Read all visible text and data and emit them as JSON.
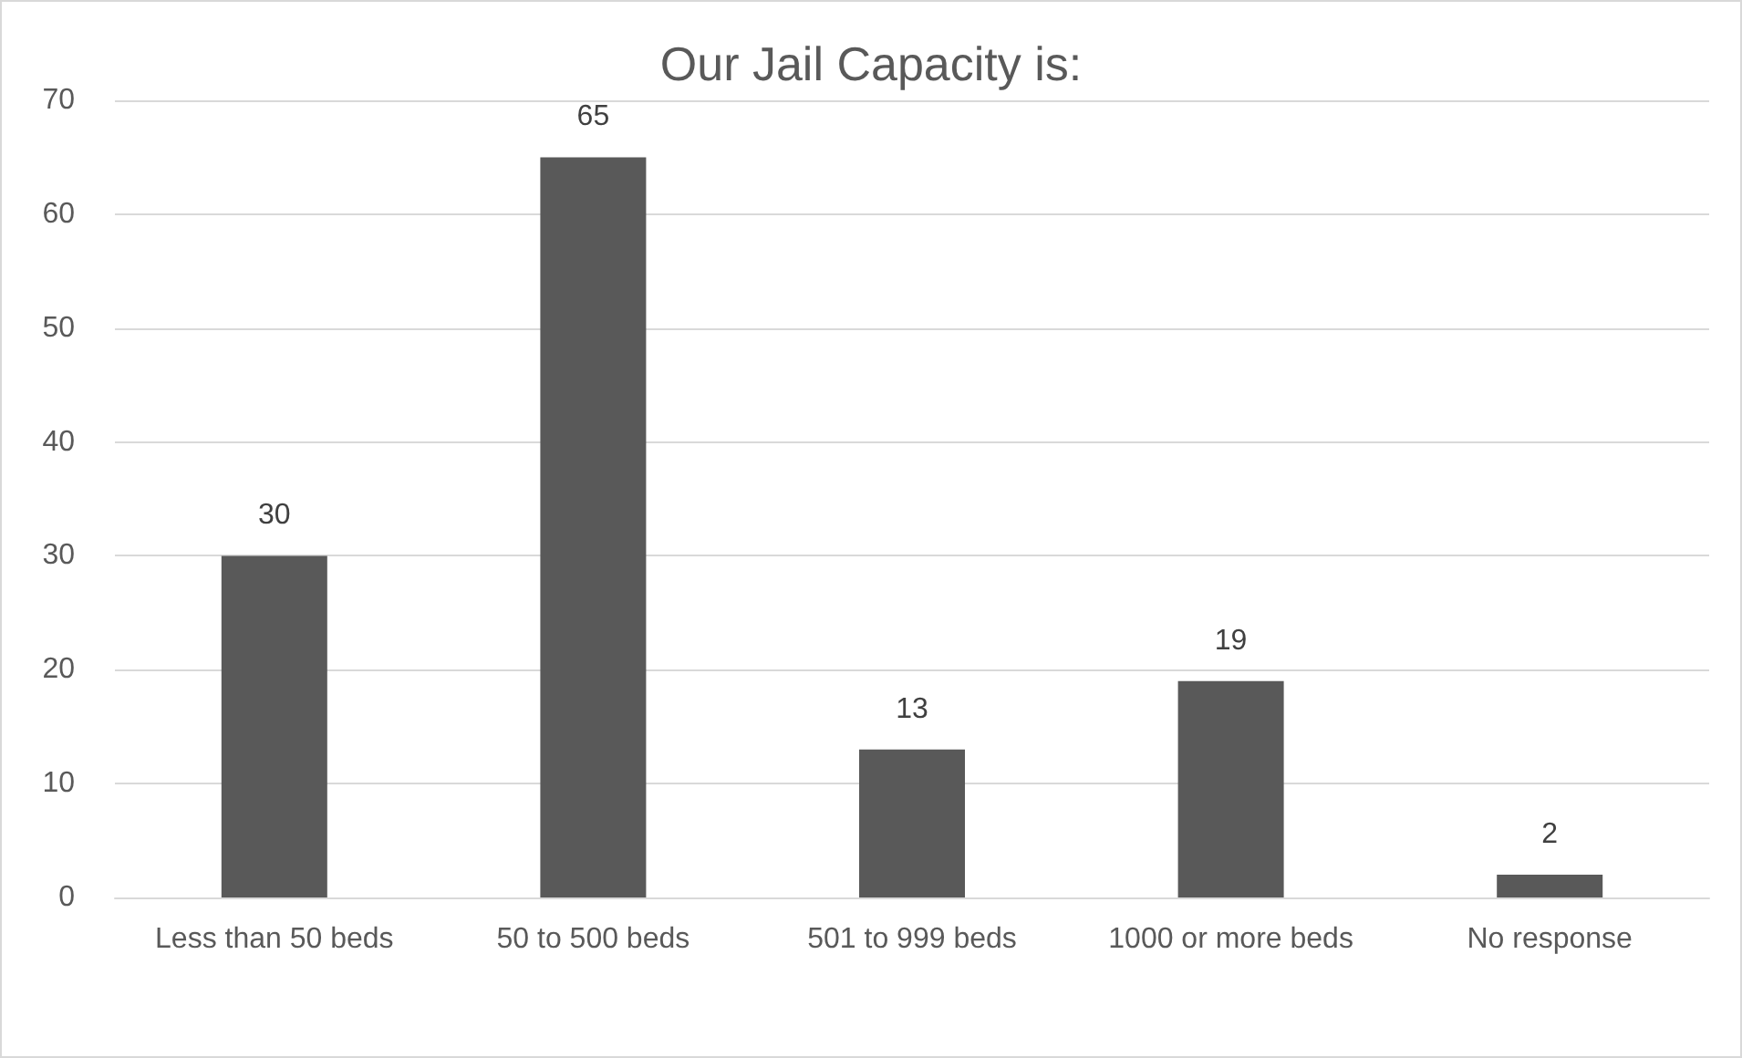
{
  "chart_data": {
    "type": "bar",
    "title": "Our Jail Capacity is:",
    "categories": [
      "Less than 50 beds",
      "50 to 500 beds",
      "501 to 999 beds",
      "1000 or more beds",
      "No response"
    ],
    "values": [
      30,
      65,
      13,
      19,
      2
    ],
    "color": "#595959",
    "ylim": [
      0,
      70
    ],
    "yticks": [
      0,
      10,
      20,
      30,
      40,
      50,
      60,
      70
    ],
    "grid": "y",
    "data_labels": true
  }
}
